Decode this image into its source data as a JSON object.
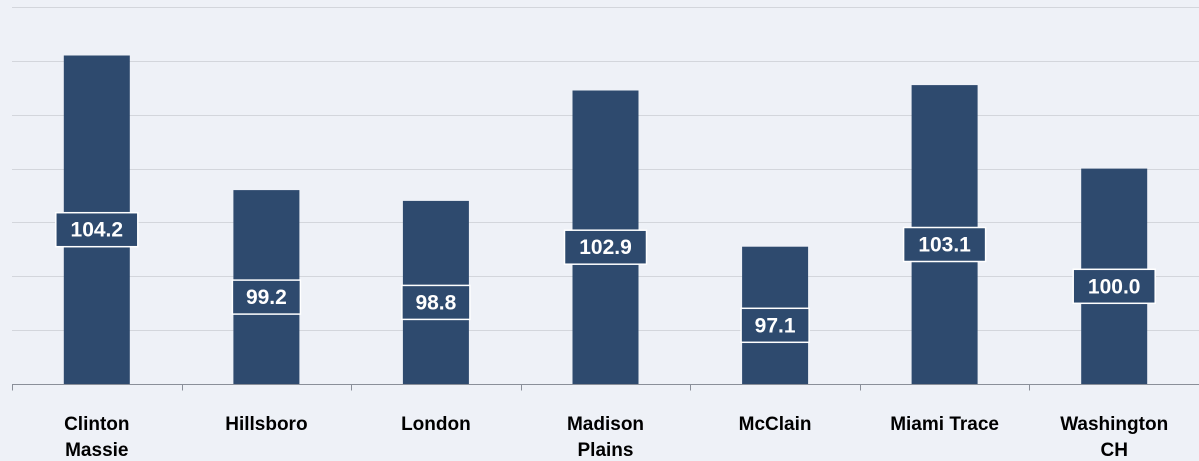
{
  "chart_data": {
    "type": "bar",
    "categories": [
      [
        "Clinton",
        "Massie"
      ],
      [
        "Hillsboro"
      ],
      [
        "London"
      ],
      [
        "Madison",
        "Plains"
      ],
      [
        "McClain"
      ],
      [
        "Miami Trace"
      ],
      [
        "Washington",
        "CH"
      ]
    ],
    "values": [
      104.2,
      99.2,
      98.8,
      102.9,
      97.1,
      103.1,
      100.0
    ],
    "value_labels": [
      "104.2",
      "99.2",
      "98.8",
      "102.9",
      "97.1",
      "103.1",
      "100.0"
    ],
    "ylim": [
      92,
      106
    ],
    "y_grid_step": 2,
    "grid": true,
    "bar_color": "#2e4a6e",
    "title": "",
    "xlabel": "",
    "ylabel": ""
  }
}
